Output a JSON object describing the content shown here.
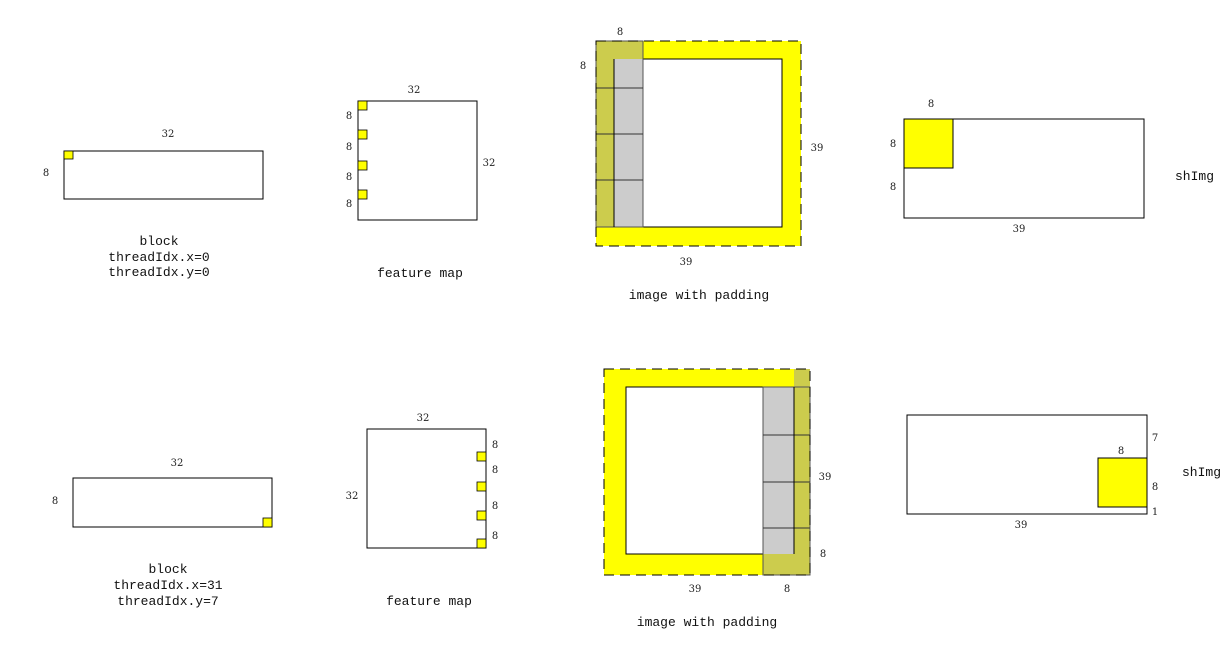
{
  "colors": {
    "yellow": "#ffff00",
    "olive": "#cccc4d",
    "gray": "#cccccc",
    "stroke": "#000000"
  },
  "top": {
    "block": {
      "width_label": "32",
      "height_label": "8",
      "caption": [
        "block",
        "threadIdx.x=0",
        "threadIdx.y=0"
      ]
    },
    "feature_map": {
      "width_label": "32",
      "height_label": "32",
      "row_labels": [
        "8",
        "8",
        "8",
        "8"
      ],
      "caption": "feature map"
    },
    "padded_image": {
      "top_label": "8",
      "left_label": "8",
      "right_label": "39",
      "bottom_label": "39",
      "caption": "image with padding"
    },
    "shimg": {
      "tile_label": "8",
      "left_top_label": "8",
      "left_bottom_label": "8",
      "bottom_label": "39",
      "title": "shImg"
    }
  },
  "bottom": {
    "block": {
      "width_label": "32",
      "height_label": "8",
      "caption": [
        "block",
        "threadIdx.x=31",
        "threadIdx.y=7"
      ]
    },
    "feature_map": {
      "width_label": "32",
      "height_label": "32",
      "row_labels": [
        "8",
        "8",
        "8",
        "8"
      ],
      "caption": "feature map"
    },
    "padded_image": {
      "right_label": "39",
      "right_bottom_label": "8",
      "bottom_label": "39",
      "bottom_right_label": "8",
      "caption": "image with padding"
    },
    "shimg": {
      "tile_label": "8",
      "right_top_label": "7",
      "right_mid_label": "8",
      "right_bottom_label": "1",
      "bottom_label": "39",
      "title": "shImg"
    }
  }
}
